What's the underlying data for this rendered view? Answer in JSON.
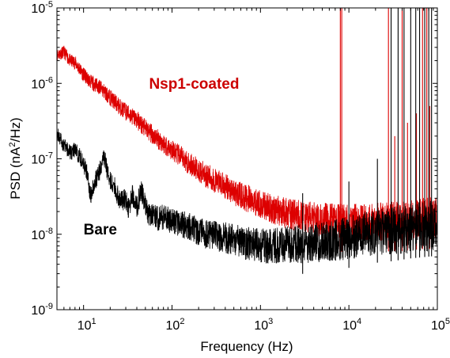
{
  "chart_data": {
    "type": "line",
    "title": "",
    "xlabel": "Frequency (Hz)",
    "ylabel_parts": {
      "before": "PSD (nA",
      "sup": "2",
      "after": "/Hz)"
    },
    "x_scale": "log",
    "y_scale": "log",
    "xlim": [
      5,
      100000
    ],
    "ylim": [
      1e-09,
      1e-05
    ],
    "grid": false,
    "legend": "none",
    "x_ticks": [
      {
        "value": 10,
        "base": "10",
        "exp": "1"
      },
      {
        "value": 100,
        "base": "10",
        "exp": "2"
      },
      {
        "value": 1000,
        "base": "10",
        "exp": "3"
      },
      {
        "value": 10000,
        "base": "10",
        "exp": "4"
      },
      {
        "value": 100000,
        "base": "10",
        "exp": "5"
      }
    ],
    "y_ticks": [
      {
        "value": 1e-09,
        "base": "10",
        "exp": "-9"
      },
      {
        "value": 1e-08,
        "base": "10",
        "exp": "-8"
      },
      {
        "value": 1e-07,
        "base": "10",
        "exp": "-7"
      },
      {
        "value": 1e-06,
        "base": "10",
        "exp": "-6"
      },
      {
        "value": 1e-05,
        "base": "10",
        "exp": "-5"
      }
    ],
    "annotations": [
      {
        "text": "Nsp1-coated",
        "color": "#cc0000",
        "x": 55,
        "y": 8.5e-07
      },
      {
        "text": "Bare",
        "color": "#000000",
        "x": 10,
        "y": 1e-08
      }
    ],
    "series": [
      {
        "color": "#dd0000",
        "x": [
          5,
          6,
          7,
          8,
          10,
          12,
          15,
          20,
          25,
          30,
          40,
          50,
          60,
          80,
          100,
          150,
          200,
          300,
          400,
          500,
          700,
          1000,
          1500,
          2000,
          3000,
          4000,
          5000,
          7000,
          10000,
          15000,
          20000,
          30000,
          40000,
          50000,
          70000,
          100000
        ],
        "y": [
          2.4e-06,
          2.6e-06,
          2e-06,
          1.9e-06,
          1.3e-06,
          1.05e-06,
          9e-07,
          6.5e-07,
          5e-07,
          4.2e-07,
          3.3e-07,
          2.5e-07,
          2.1e-07,
          1.6e-07,
          1.3e-07,
          9e-08,
          7e-08,
          5.2e-08,
          4.3e-08,
          3.6e-08,
          3e-08,
          2.5e-08,
          2.1e-08,
          1.9e-08,
          1.7e-08,
          1.6e-08,
          1.55e-08,
          1.5e-08,
          1.45e-08,
          1.45e-08,
          1.45e-08,
          1.5e-08,
          1.5e-08,
          1.55e-08,
          1.6e-08,
          1.6e-08
        ],
        "noise_amplitude": 1.7,
        "spikes": [
          {
            "x": 8000,
            "y": 1e-05
          },
          {
            "x": 8300,
            "y": 1e-05
          },
          {
            "x": 28000,
            "y": 1e-05
          },
          {
            "x": 33000,
            "y": 2e-07
          },
          {
            "x": 40000,
            "y": 1e-05
          },
          {
            "x": 46000,
            "y": 3e-07
          },
          {
            "x": 58000,
            "y": 4e-07
          },
          {
            "x": 68000,
            "y": 1e-05
          },
          {
            "x": 76000,
            "y": 1e-05
          },
          {
            "x": 82000,
            "y": 5e-07
          }
        ]
      },
      {
        "color": "#000000",
        "x": [
          5,
          6,
          7,
          8,
          9,
          10,
          11,
          12,
          13,
          15,
          17,
          20,
          22,
          25,
          28,
          30,
          33,
          35,
          40,
          45,
          50,
          55,
          60,
          70,
          80,
          100,
          150,
          200,
          300,
          500,
          700,
          1000,
          1500,
          2000,
          3000,
          5000,
          7000,
          10000,
          15000,
          20000,
          30000,
          50000,
          70000,
          100000
        ],
        "y": [
          2.2e-07,
          1.5e-07,
          1.2e-07,
          1.3e-07,
          1.1e-07,
          8.5e-08,
          6.5e-08,
          3.2e-08,
          4.5e-08,
          6.5e-08,
          1.05e-07,
          5e-08,
          4.5e-08,
          3e-08,
          2.8e-08,
          3e-08,
          2e-08,
          3.5e-08,
          2.3e-08,
          3.8e-08,
          2.5e-08,
          1.8e-08,
          1.9e-08,
          1.6e-08,
          1.7e-08,
          1.5e-08,
          1.3e-08,
          1.1e-08,
          9.5e-09,
          8.5e-09,
          7.5e-09,
          7e-09,
          7e-09,
          7.2e-09,
          7.5e-09,
          8e-09,
          8.5e-09,
          9e-09,
          1e-08,
          1.05e-08,
          1.1e-08,
          1.2e-08,
          1.25e-08,
          1.3e-08
        ],
        "noise_amplitude": 1.9,
        "spikes": [
          {
            "x": 3000,
            "y": 3.5e-08
          },
          {
            "x": 10000,
            "y": 5e-08
          },
          {
            "x": 21000,
            "y": 1e-07
          },
          {
            "x": 30000,
            "y": 1e-05
          },
          {
            "x": 36000,
            "y": 1e-05
          },
          {
            "x": 42000,
            "y": 1e-05
          },
          {
            "x": 50000,
            "y": 1e-05
          },
          {
            "x": 57000,
            "y": 1e-05
          },
          {
            "x": 63000,
            "y": 1e-05
          },
          {
            "x": 72000,
            "y": 1e-05
          },
          {
            "x": 80000,
            "y": 1e-05
          },
          {
            "x": 86000,
            "y": 1e-05
          }
        ]
      }
    ]
  }
}
